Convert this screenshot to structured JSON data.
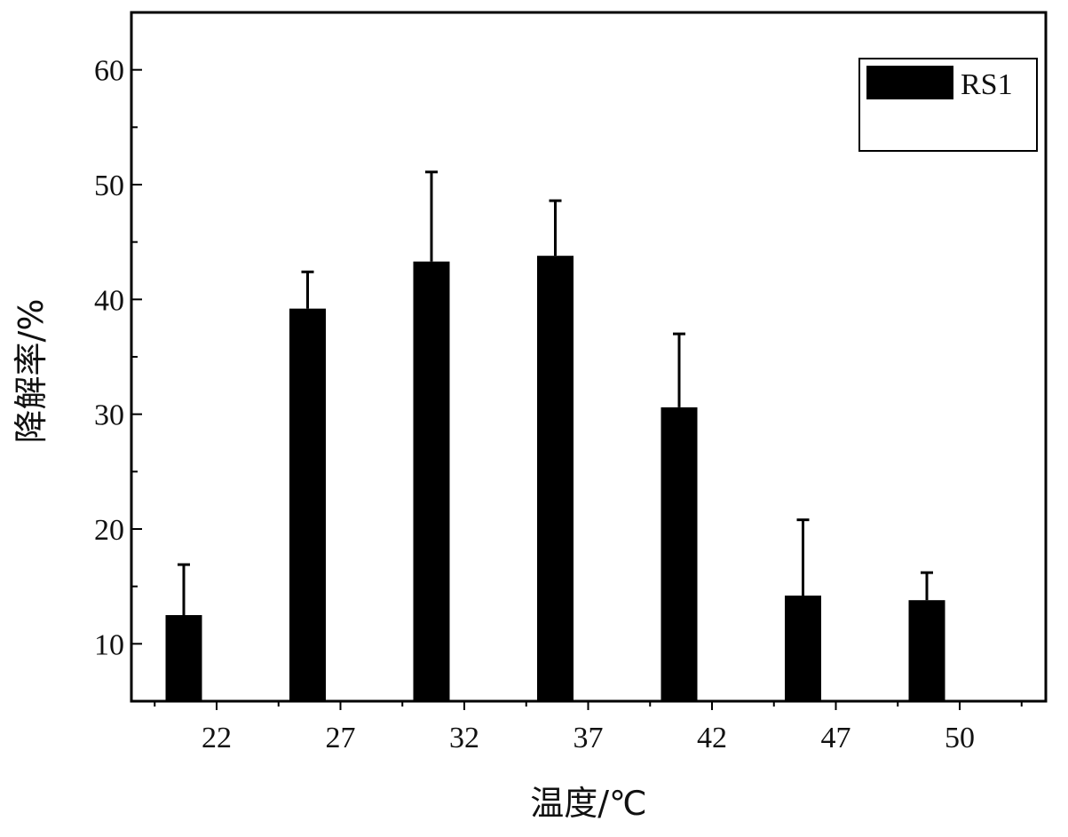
{
  "chart_data": {
    "type": "bar",
    "title": "",
    "xlabel": "温度/℃",
    "ylabel": "降解率/%",
    "categories": [
      "22",
      "27",
      "32",
      "37",
      "42",
      "47",
      "50"
    ],
    "series": [
      {
        "name": "RS1",
        "color": "#000000",
        "values": [
          12.5,
          39.2,
          43.3,
          43.8,
          30.6,
          14.2,
          13.8
        ],
        "errors": [
          4.4,
          3.2,
          7.8,
          4.8,
          6.4,
          6.6,
          2.4
        ]
      }
    ],
    "yticks": [
      10,
      20,
      30,
      40,
      50,
      60
    ],
    "ylim": [
      5,
      65
    ],
    "grid": false,
    "legend_position": "top-right"
  }
}
